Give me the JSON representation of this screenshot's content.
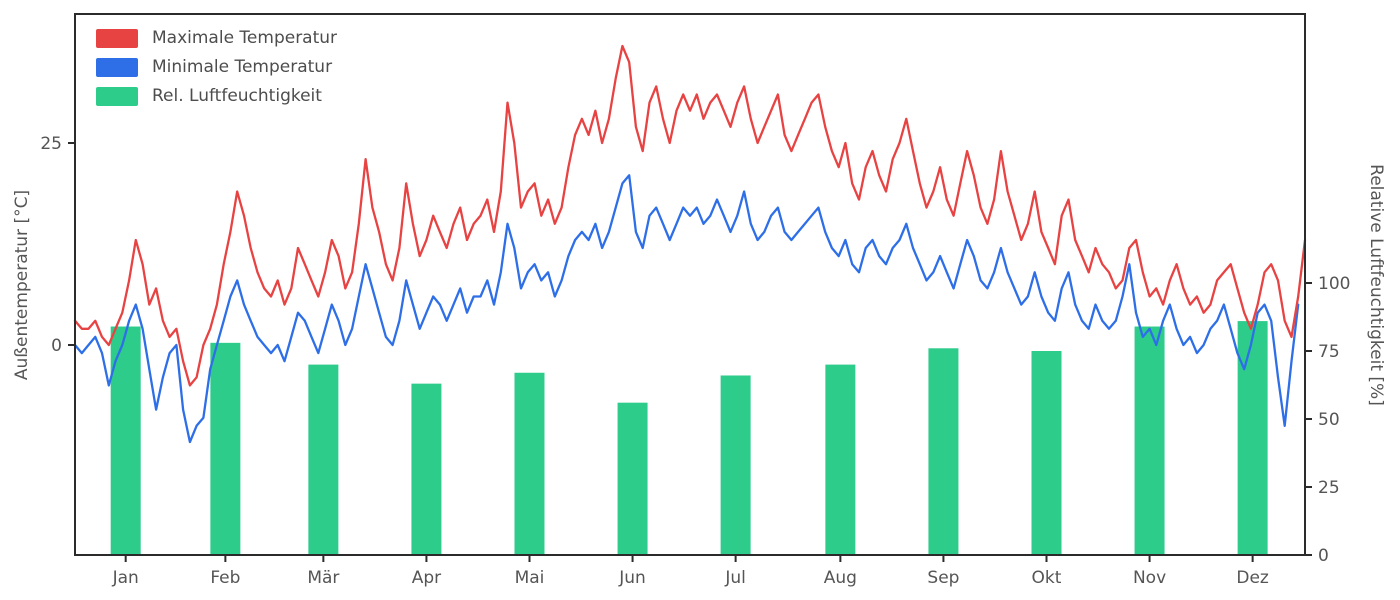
{
  "chart_data": {
    "type": "mixed",
    "title": "",
    "legend_position": "upper left",
    "x_ticklabels": [
      "Jan",
      "Feb",
      "Mär",
      "Apr",
      "Mai",
      "Jun",
      "Jul",
      "Aug",
      "Sep",
      "Okt",
      "Nov",
      "Dez"
    ],
    "left_axis": {
      "label": "Außentemperatur [°C]",
      "ticks": [
        0,
        25
      ],
      "range": [
        -26,
        41
      ]
    },
    "right_axis": {
      "label": "Relative Luftfeuchtigkeit [%]",
      "ticks": [
        0,
        25,
        50,
        75,
        100
      ],
      "range": [
        0,
        199
      ]
    },
    "colors": {
      "max_temp": "#e84343",
      "min_temp": "#2e6fe8",
      "humidity": "#2ecc8b",
      "spine": "#2b2b2b",
      "tick_text": "#555555"
    },
    "series": [
      {
        "name": "Maximale Temperatur",
        "type": "line",
        "axis": "left",
        "color": "#e84343",
        "x_note": "day of year, every 2nd day (days 1,3,...,365)",
        "values": [
          3,
          2,
          2,
          3,
          1,
          0,
          2,
          4,
          8,
          13,
          10,
          5,
          7,
          3,
          1,
          2,
          -2,
          -5,
          -4,
          0,
          2,
          5,
          10,
          14,
          19,
          16,
          12,
          9,
          7,
          6,
          8,
          5,
          7,
          12,
          10,
          8,
          6,
          9,
          13,
          11,
          7,
          9,
          15,
          23,
          17,
          14,
          10,
          8,
          12,
          20,
          15,
          11,
          13,
          16,
          14,
          12,
          15,
          17,
          13,
          15,
          16,
          18,
          14,
          19,
          30,
          25,
          17,
          19,
          20,
          16,
          18,
          15,
          17,
          22,
          26,
          28,
          26,
          29,
          25,
          28,
          33,
          37,
          35,
          27,
          24,
          30,
          32,
          28,
          25,
          29,
          31,
          29,
          31,
          28,
          30,
          31,
          29,
          27,
          30,
          32,
          28,
          25,
          27,
          29,
          31,
          26,
          24,
          26,
          28,
          30,
          31,
          27,
          24,
          22,
          25,
          20,
          18,
          22,
          24,
          21,
          19,
          23,
          25,
          28,
          24,
          20,
          17,
          19,
          22,
          18,
          16,
          20,
          24,
          21,
          17,
          15,
          18,
          24,
          19,
          16,
          13,
          15,
          19,
          14,
          12,
          10,
          16,
          18,
          13,
          11,
          9,
          12,
          10,
          9,
          7,
          8,
          12,
          13,
          9,
          6,
          7,
          5,
          8,
          10,
          7,
          5,
          6,
          4,
          5,
          8,
          9,
          10,
          7,
          4,
          2,
          5,
          9,
          10,
          8,
          3,
          1,
          6,
          13
        ]
      },
      {
        "name": "Minimale Temperatur",
        "type": "line",
        "axis": "left",
        "color": "#2e6fe8",
        "x_note": "day of year, every 2nd day (days 1,3,...,365)",
        "values": [
          0,
          -1,
          0,
          1,
          -1,
          -5,
          -2,
          0,
          3,
          5,
          2,
          -3,
          -8,
          -4,
          -1,
          0,
          -8,
          -12,
          -10,
          -9,
          -3,
          0,
          3,
          6,
          8,
          5,
          3,
          1,
          0,
          -1,
          0,
          -2,
          1,
          4,
          3,
          1,
          -1,
          2,
          5,
          3,
          0,
          2,
          6,
          10,
          7,
          4,
          1,
          0,
          3,
          8,
          5,
          2,
          4,
          6,
          5,
          3,
          5,
          7,
          4,
          6,
          6,
          8,
          5,
          9,
          15,
          12,
          7,
          9,
          10,
          8,
          9,
          6,
          8,
          11,
          13,
          14,
          13,
          15,
          12,
          14,
          17,
          20,
          21,
          14,
          12,
          16,
          17,
          15,
          13,
          15,
          17,
          16,
          17,
          15,
          16,
          18,
          16,
          14,
          16,
          19,
          15,
          13,
          14,
          16,
          17,
          14,
          13,
          14,
          15,
          16,
          17,
          14,
          12,
          11,
          13,
          10,
          9,
          12,
          13,
          11,
          10,
          12,
          13,
          15,
          12,
          10,
          8,
          9,
          11,
          9,
          7,
          10,
          13,
          11,
          8,
          7,
          9,
          12,
          9,
          7,
          5,
          6,
          9,
          6,
          4,
          3,
          7,
          9,
          5,
          3,
          2,
          5,
          3,
          2,
          3,
          6,
          10,
          4,
          1,
          2,
          0,
          3,
          5,
          2,
          0,
          1,
          -1,
          0,
          2,
          3,
          5,
          2,
          -1,
          -3,
          0,
          4,
          5,
          3,
          -4,
          -10,
          -2,
          5
        ]
      },
      {
        "name": "Rel. Luftfeuchtigkeit",
        "type": "bar",
        "axis": "right",
        "color": "#2ecc8b",
        "categories": [
          "Jan",
          "Feb",
          "Mär",
          "Apr",
          "Mai",
          "Jun",
          "Jul",
          "Aug",
          "Sep",
          "Okt",
          "Nov",
          "Dez"
        ],
        "values": [
          84,
          78,
          70,
          63,
          67,
          56,
          66,
          70,
          76,
          75,
          84,
          86
        ]
      }
    ]
  }
}
